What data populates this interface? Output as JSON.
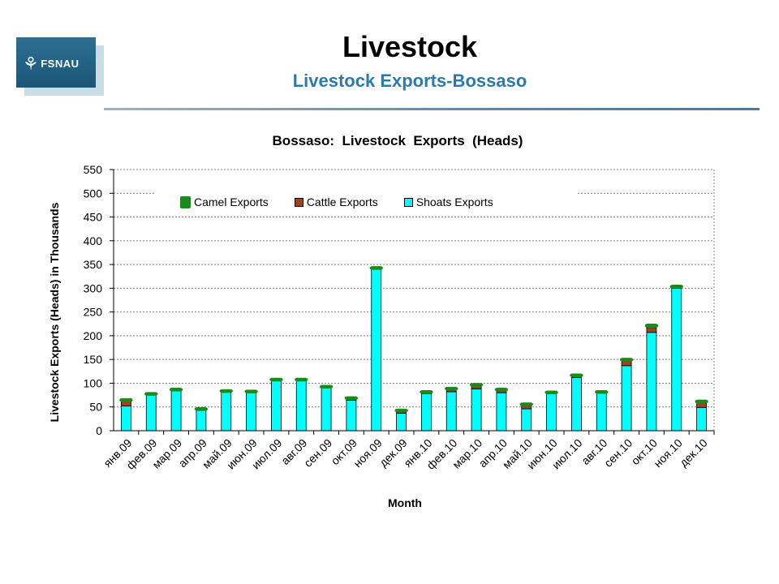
{
  "header": {
    "logo_text": "FSNAU",
    "title": "Livestock",
    "subtitle": "Livestock Exports-Bossaso"
  },
  "colors": {
    "camel": "#1a8a1a",
    "cattle": "#a0421a",
    "shoats": "#00ffff",
    "subtitle": "#2d7aa8",
    "grid": "#808080"
  },
  "chart_data": {
    "type": "bar",
    "stacked": true,
    "title": "Bossaso:  Livestock  Exports  (Heads)",
    "xlabel": "Month",
    "ylabel": "Livestock Exports (Heads) in Thousands",
    "ylim": [
      0,
      550
    ],
    "yticks": [
      0,
      50,
      100,
      150,
      200,
      250,
      300,
      350,
      400,
      450,
      500,
      550
    ],
    "grid": true,
    "legend_position": "top",
    "categories": [
      "янв.09",
      "фев.09",
      "мар.09",
      "апр.09",
      "май.09",
      "июн.09",
      "июл.09",
      "авг.09",
      "сен.09",
      "окт.09",
      "ноя.09",
      "дек.09",
      "янв.10",
      "фев.10",
      "мар.10",
      "апр.10",
      "май.10",
      "июн.10",
      "июл.10",
      "авг.10",
      "сен.10",
      "окт.10",
      "ноя.10",
      "дек.10"
    ],
    "series": [
      {
        "name": "Shoats Exports",
        "color": "#00ffff",
        "values": [
          52,
          75,
          85,
          45,
          83,
          82,
          107,
          107,
          91,
          64,
          342,
          37,
          78,
          82,
          88,
          80,
          46,
          78,
          112,
          80,
          137,
          207,
          300,
          49
        ]
      },
      {
        "name": "Cattle Exports",
        "color": "#a0421a",
        "values": [
          12,
          1,
          1,
          0,
          0,
          0,
          0,
          0,
          1,
          4,
          0,
          5,
          3,
          5,
          8,
          4,
          9,
          2,
          3,
          1,
          12,
          10,
          2,
          10
        ]
      },
      {
        "name": "Camel Exports",
        "color": "#1a8a1a",
        "values": [
          4,
          5,
          4,
          4,
          4,
          4,
          4,
          4,
          4,
          4,
          4,
          4,
          4,
          5,
          4,
          6,
          4,
          4,
          5,
          4,
          4,
          8,
          5,
          6
        ]
      }
    ]
  }
}
